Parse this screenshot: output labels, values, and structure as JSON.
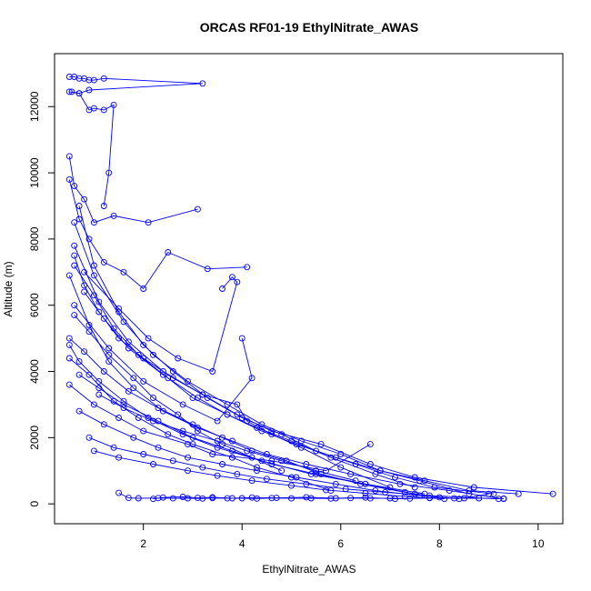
{
  "chart_data": {
    "type": "scatter",
    "title": "ORCAS RF01-19 EthylNitrate_AWAS",
    "xlabel": "EthylNitrate_AWAS",
    "ylabel": "Altitude (m)",
    "xlim": [
      0.2,
      10.5
    ],
    "ylim": [
      -600,
      13600
    ],
    "x_ticks": [
      2,
      4,
      6,
      8,
      10
    ],
    "y_ticks": [
      0,
      2000,
      4000,
      6000,
      8000,
      10000,
      12000
    ],
    "grid": false,
    "line_color": "#0000ff",
    "series": [
      {
        "x": [
          0.5,
          0.6,
          0.7,
          0.8,
          0.9,
          1.0,
          1.2,
          3.2,
          0.9,
          0.7,
          0.5
        ],
        "y": [
          12900,
          12900,
          12850,
          12850,
          12800,
          12800,
          12850,
          12700,
          12500,
          12400,
          12450
        ]
      },
      {
        "x": [
          0.55,
          0.7,
          0.9,
          1.0,
          1.2,
          1.4,
          1.3,
          1.2
        ],
        "y": [
          12450,
          12400,
          11900,
          11950,
          11900,
          12050,
          10000,
          9000
        ]
      },
      {
        "x": [
          0.5,
          0.6,
          0.8,
          1.0,
          1.4,
          2.1,
          3.1
        ],
        "y": [
          10500,
          9600,
          9200,
          8500,
          8700,
          8500,
          8900
        ]
      },
      {
        "x": [
          0.5,
          0.7,
          0.9,
          1.2,
          1.6,
          2.0,
          2.5,
          3.3,
          4.1
        ],
        "y": [
          9800,
          8600,
          8000,
          7300,
          7000,
          6500,
          7600,
          7100,
          7150
        ]
      },
      {
        "x": [
          0.6,
          0.8,
          1.1,
          1.5,
          2.0,
          2.6,
          3.2,
          3.9,
          4.6,
          5.6,
          6.6,
          7.5,
          8.7,
          10.3
        ],
        "y": [
          7500,
          6600,
          5800,
          5000,
          4400,
          3800,
          3300,
          2700,
          2200,
          1800,
          1200,
          800,
          500,
          300
        ]
      },
      {
        "x": [
          0.5,
          0.9,
          1.3,
          1.8,
          2.4,
          3.1,
          3.8,
          4.5,
          5.3,
          6.2,
          7.2,
          8.2,
          9.3
        ],
        "y": [
          6900,
          5400,
          4300,
          3500,
          2800,
          2300,
          1900,
          1500,
          1200,
          900,
          600,
          400,
          150
        ]
      },
      {
        "x": [
          0.6,
          1.0,
          1.6,
          2.2,
          2.9,
          3.7,
          4.4,
          5.2,
          6.0,
          6.8,
          7.6,
          8.6
        ],
        "y": [
          8500,
          6900,
          5500,
          4500,
          3700,
          3000,
          2400,
          1900,
          1500,
          1000,
          700,
          300
        ]
      },
      {
        "x": [
          0.5,
          0.8,
          1.2,
          1.7,
          2.3,
          3.0,
          3.6,
          4.2,
          4.9,
          5.6,
          6.4,
          7.3,
          8.0
        ],
        "y": [
          5000,
          4600,
          4000,
          3400,
          2900,
          2400,
          2000,
          1600,
          1300,
          900,
          600,
          350,
          200
        ]
      },
      {
        "x": [
          0.6,
          1.1,
          1.7,
          2.4,
          3.2,
          3.9,
          4.1,
          4.6,
          5.2,
          6.0,
          7.0
        ],
        "y": [
          7800,
          6100,
          4900,
          4000,
          3300,
          3000,
          2500,
          2100,
          1700,
          1100,
          500
        ]
      },
      {
        "x": [
          0.7,
          1.0,
          1.5,
          2.0,
          2.6,
          3.3,
          4.0,
          4.8,
          5.5,
          6.3,
          7.1,
          7.9,
          9.1
        ],
        "y": [
          9000,
          7200,
          5800,
          4800,
          4000,
          3200,
          2600,
          2100,
          1600,
          1200,
          800,
          500,
          300
        ]
      },
      {
        "x": [
          0.5,
          0.9,
          1.4,
          1.9,
          2.5,
          3.0,
          3.8,
          4.3,
          5.0,
          5.8
        ],
        "y": [
          4400,
          3900,
          3100,
          2600,
          2100,
          1800,
          1400,
          1100,
          800,
          400
        ]
      },
      {
        "x": [
          0.6,
          1.3,
          2.0,
          2.8,
          3.5,
          4.2,
          4.0
        ],
        "y": [
          6000,
          4700,
          3700,
          3000,
          2500,
          3800,
          5000
        ]
      },
      {
        "x": [
          0.8,
          1.5,
          2.1,
          2.7,
          3.4,
          3.9,
          3.8,
          3.6
        ],
        "y": [
          7000,
          5900,
          5000,
          4400,
          4000,
          6700,
          6850,
          6500
        ]
      },
      {
        "x": [
          0.5,
          1.0,
          1.5,
          2.0,
          2.9,
          3.4,
          4.6,
          5.7,
          6.6
        ],
        "y": [
          3600,
          3000,
          2600,
          2200,
          1800,
          1500,
          1300,
          1000,
          1800
        ]
      },
      {
        "x": [
          0.7,
          1.2,
          1.8,
          2.3,
          2.9,
          3.6,
          4.3,
          5.1,
          5.9,
          6.7,
          7.6,
          8.4
        ],
        "y": [
          2800,
          2400,
          2000,
          1700,
          1400,
          1200,
          1000,
          800,
          600,
          400,
          250,
          150
        ]
      },
      {
        "x": [
          0.9,
          1.4,
          2.0,
          2.6,
          3.2,
          3.9,
          4.5,
          5.3,
          6.1,
          6.9,
          7.8,
          9.2
        ],
        "y": [
          2000,
          1700,
          1500,
          1300,
          1100,
          900,
          750,
          600,
          450,
          350,
          250,
          150
        ]
      },
      {
        "x": [
          1.0,
          1.5,
          2.2,
          2.9,
          3.5,
          4.2,
          5.0,
          5.7,
          6.5,
          7.3,
          8.1
        ],
        "y": [
          1600,
          1400,
          1200,
          1000,
          850,
          700,
          550,
          420,
          320,
          220,
          150
        ]
      },
      {
        "x": [
          1.5,
          1.7,
          1.9,
          2.3,
          2.6,
          2.9,
          3.2,
          3.4,
          3.7,
          4.0,
          4.3,
          4.6,
          5.0,
          5.4,
          5.8,
          6.2,
          6.6,
          7.0,
          7.4,
          7.8,
          8.3,
          8.8,
          9.3
        ],
        "y": [
          330,
          180,
          170,
          175,
          165,
          170,
          160,
          175,
          165,
          170,
          160,
          175,
          165,
          170,
          160,
          175,
          165,
          170,
          160,
          175,
          165,
          170,
          160
        ]
      },
      {
        "x": [
          2.2,
          2.4,
          2.8,
          3.1,
          3.4,
          3.8,
          4.2,
          4.7,
          5.3,
          5.9,
          6.5,
          7.1,
          7.8,
          8.5,
          9.0
        ],
        "y": [
          150,
          190,
          210,
          180,
          200,
          170,
          190,
          180,
          200,
          170,
          190,
          150,
          180,
          170,
          300
        ]
      },
      {
        "x": [
          0.6,
          0.9,
          1.3,
          1.8,
          2.2,
          2.7,
          3.1,
          3.6,
          4.2,
          4.8
        ],
        "y": [
          5700,
          5200,
          4500,
          3800,
          3200,
          2700,
          2200,
          1800,
          1400,
          1000
        ]
      },
      {
        "x": [
          0.5,
          0.7,
          1.1,
          1.6,
          2.1,
          2.8,
          3.5,
          4.4,
          5.4,
          6.5,
          7.7
        ],
        "y": [
          4800,
          4300,
          3700,
          3100,
          2600,
          2100,
          1700,
          1300,
          900,
          600,
          300
        ]
      },
      {
        "x": [
          0.8,
          1.2,
          1.7,
          2.4,
          3.1,
          3.7,
          4.3,
          5.0,
          5.8,
          6.7,
          7.5
        ],
        "y": [
          6400,
          5600,
          4700,
          3900,
          3200,
          2700,
          2300,
          1900,
          1400,
          900,
          500
        ]
      },
      {
        "x": [
          1.1,
          1.6,
          2.2,
          2.8,
          3.5,
          4.1,
          4.8,
          5.5,
          6.3
        ],
        "y": [
          3300,
          2900,
          2500,
          2200,
          1900,
          1600,
          1300,
          1000,
          700
        ]
      },
      {
        "x": [
          0.6,
          1.0,
          1.4,
          1.9,
          2.5,
          3.0,
          3.7,
          4.4,
          5.1,
          5.9,
          6.8,
          7.7,
          8.6,
          9.6
        ],
        "y": [
          7200,
          6300,
          5300,
          4500,
          3800,
          3200,
          2700,
          2200,
          1800,
          1400,
          1000,
          700,
          400,
          300
        ]
      },
      {
        "x": [
          0.7,
          1.1,
          1.6,
          2.3,
          3.0,
          3.8,
          4.6,
          5.5,
          6.5,
          7.5
        ],
        "y": [
          3900,
          3500,
          3000,
          2500,
          2000,
          1600,
          1200,
          900,
          600,
          300
        ]
      }
    ]
  }
}
